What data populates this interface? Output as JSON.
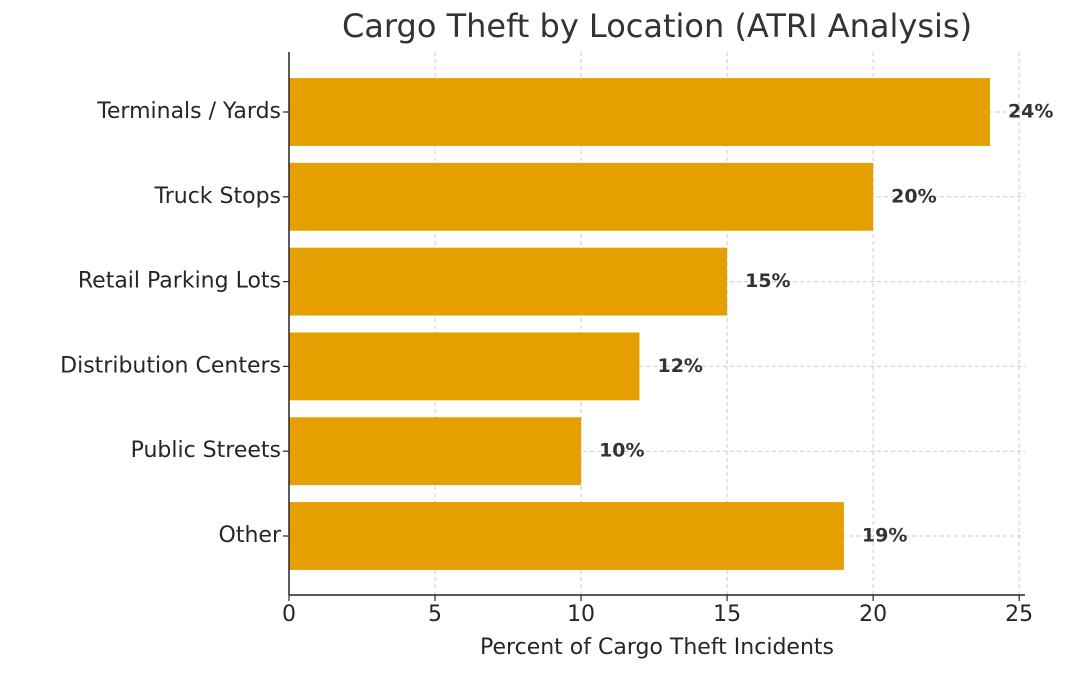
{
  "chart_data": {
    "type": "bar",
    "orientation": "horizontal",
    "title": "Cargo Theft by Location (ATRI Analysis)",
    "x_label": "Percent of Cargo Theft Incidents",
    "categories": [
      "Terminals / Yards",
      "Truck Stops",
      "Retail Parking Lots",
      "Distribution Centers",
      "Public Streets",
      "Other"
    ],
    "values": [
      24,
      20,
      15,
      12,
      10,
      19
    ],
    "value_labels": [
      "24%",
      "20%",
      "15%",
      "12%",
      "10%",
      "19%"
    ],
    "color": "#e69f00",
    "xlim": [
      0,
      25.2
    ],
    "xticks": [
      0,
      5,
      10,
      15,
      20,
      25
    ],
    "grid": true
  }
}
